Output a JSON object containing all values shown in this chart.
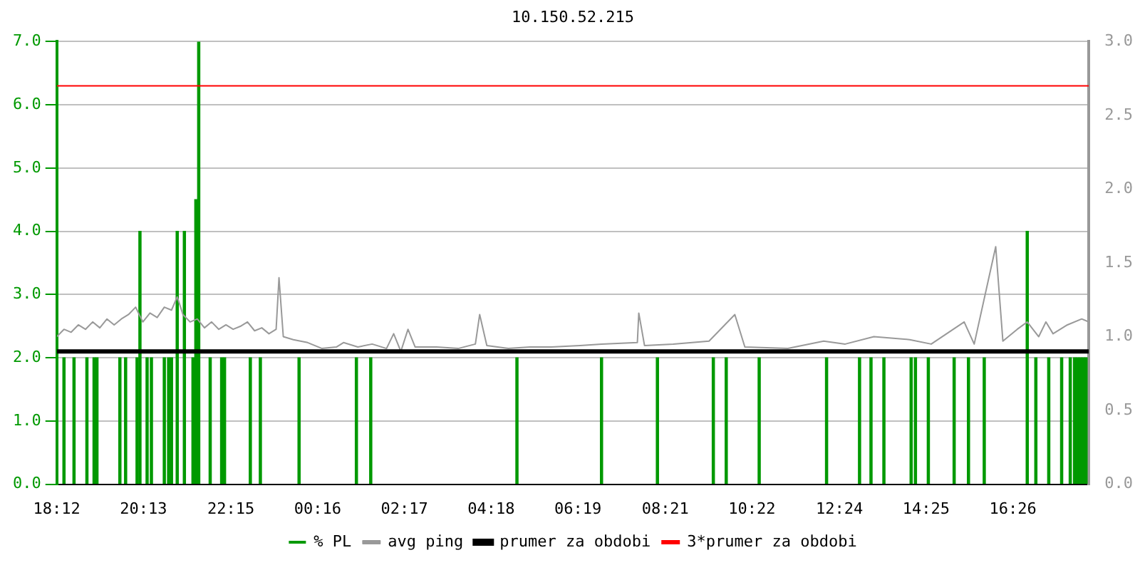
{
  "chart_data": {
    "type": "bar",
    "title": "10.150.52.215",
    "xlim": [
      "--01-01T18:12",
      "--01-02T18:12"
    ],
    "xticks": [
      {
        "value": "--01-01T18:12",
        "label": "18:12"
      },
      {
        "value": "--01-01T20:13",
        "label": "20:13"
      },
      {
        "value": "--01-01T22:15",
        "label": "22:15"
      },
      {
        "value": "--01-02T00:16",
        "label": "00:16"
      },
      {
        "value": "--01-02T02:17",
        "label": "02:17"
      },
      {
        "value": "--01-02T04:18",
        "label": "04:18"
      },
      {
        "value": "--01-02T06:19",
        "label": "06:19"
      },
      {
        "value": "--01-02T08:21",
        "label": "08:21"
      },
      {
        "value": "--01-02T10:22",
        "label": "10:22"
      },
      {
        "value": "--01-02T12:24",
        "label": "12:24"
      },
      {
        "value": "--01-02T14:25",
        "label": "14:25"
      },
      {
        "value": "--01-02T16:26",
        "label": "16:26"
      }
    ],
    "ylim": [
      0,
      7
    ],
    "yticks": [
      {
        "value": 0,
        "label": "0.0"
      },
      {
        "value": 1,
        "label": "1.0"
      },
      {
        "value": 2,
        "label": "2.0"
      },
      {
        "value": 3,
        "label": "3.0"
      },
      {
        "value": 4,
        "label": "4.0"
      },
      {
        "value": 5,
        "label": "5.0"
      },
      {
        "value": 6,
        "label": "6.0"
      },
      {
        "value": 7,
        "label": "7.0"
      }
    ],
    "y2lim": [
      0,
      3
    ],
    "y2ticks": [
      {
        "value": 0,
        "label": "0.0"
      },
      {
        "value": 0.5,
        "label": "0.5"
      },
      {
        "value": 1,
        "label": "1.0"
      },
      {
        "value": 1.5,
        "label": "1.5"
      },
      {
        "value": 2,
        "label": "2.0"
      },
      {
        "value": 2.5,
        "label": "2.5"
      },
      {
        "value": 3,
        "label": "3.0"
      }
    ],
    "grid": "y",
    "legend": "bottom",
    "series": [
      {
        "name": "% PL",
        "color": "#009900",
        "x": [
          "--01-01T18:22",
          "--01-01T18:36",
          "--01-01T18:54",
          "--01-01T19:04",
          "--01-01T19:08",
          "--01-01T19:40",
          "--01-01T19:48",
          "--01-01T20:04",
          "--01-01T20:08",
          "--01-01T20:18",
          "--01-01T20:24",
          "--01-01T20:42",
          "--01-01T20:48",
          "--01-01T20:52",
          "--01-01T21:00",
          "--01-01T21:10",
          "--01-01T21:22",
          "--01-01T21:26",
          "--01-01T21:30",
          "--01-01T21:46",
          "--01-01T22:02",
          "--01-01T22:06",
          "--01-01T22:42",
          "--01-01T22:56",
          "--01-01T23:50",
          "--01-02T01:10",
          "--01-02T01:30",
          "--01-02T04:54",
          "--01-02T06:52",
          "--01-02T08:10",
          "--01-02T09:28",
          "--01-02T09:46",
          "--01-02T10:32",
          "--01-02T12:06",
          "--01-02T12:52",
          "--01-02T13:08",
          "--01-02T13:26",
          "--01-02T14:04",
          "--01-02T14:10",
          "--01-02T14:28",
          "--01-02T15:04",
          "--01-02T15:24",
          "--01-02T15:46",
          "--01-02T16:46",
          "--01-02T16:58",
          "--01-02T17:16",
          "--01-02T17:34",
          "--01-02T17:46",
          "--01-02T17:52",
          "--01-02T17:56",
          "--01-02T18:00",
          "--01-02T18:04",
          "--01-02T18:08"
        ],
        "values": [
          2,
          2,
          2,
          2,
          2,
          2,
          2,
          2,
          4,
          2,
          2,
          2,
          2,
          2,
          4,
          4,
          2,
          4.5,
          7,
          2,
          2,
          2,
          2,
          2,
          2,
          2,
          2,
          2,
          2,
          2,
          2,
          2,
          2,
          2,
          2,
          2,
          2,
          2,
          2,
          2,
          2,
          2,
          2,
          4,
          2,
          2,
          2,
          2,
          2,
          2,
          2,
          2,
          2
        ]
      },
      {
        "name": "avg ping",
        "type": "line",
        "axis": "y2",
        "color": "#999999",
        "x": [
          "--01-01T18:12",
          "--01-01T18:22",
          "--01-01T18:32",
          "--01-01T18:42",
          "--01-01T18:52",
          "--01-01T19:02",
          "--01-01T19:12",
          "--01-01T19:22",
          "--01-01T19:32",
          "--01-01T19:42",
          "--01-01T19:52",
          "--01-01T20:02",
          "--01-01T20:12",
          "--01-01T20:22",
          "--01-01T20:32",
          "--01-01T20:42",
          "--01-01T20:52",
          "--01-01T21:00",
          "--01-01T21:08",
          "--01-01T21:18",
          "--01-01T21:28",
          "--01-01T21:38",
          "--01-01T21:48",
          "--01-01T21:58",
          "--01-01T22:08",
          "--01-01T22:18",
          "--01-01T22:28",
          "--01-01T22:38",
          "--01-01T22:48",
          "--01-01T22:58",
          "--01-01T23:08",
          "--01-01T23:18",
          "--01-01T23:22",
          "--01-01T23:28",
          "--01-01T23:42",
          "--01-02T00:02",
          "--01-02T00:22",
          "--01-02T00:42",
          "--01-02T00:52",
          "--01-02T01:12",
          "--01-02T01:32",
          "--01-02T01:52",
          "--01-02T02:02",
          "--01-02T02:12",
          "--01-02T02:22",
          "--01-02T02:32",
          "--01-02T03:02",
          "--01-02T03:32",
          "--01-02T03:56",
          "--01-02T04:02",
          "--01-02T04:12",
          "--01-02T04:42",
          "--01-02T05:12",
          "--01-02T05:42",
          "--01-02T06:22",
          "--01-02T06:52",
          "--01-02T07:42",
          "--01-02T07:44",
          "--01-02T07:52",
          "--01-02T08:32",
          "--01-02T09:22",
          "--01-02T09:58",
          "--01-02T10:12",
          "--01-02T11:12",
          "--01-02T12:02",
          "--01-02T12:32",
          "--01-02T13:12",
          "--01-02T14:02",
          "--01-02T14:32",
          "--01-02T15:18",
          "--01-02T15:32",
          "--01-02T16:02",
          "--01-02T16:12",
          "--01-02T16:32",
          "--01-02T16:46",
          "--01-02T17:02",
          "--01-02T17:12",
          "--01-02T17:22",
          "--01-02T17:42",
          "--01-02T18:02",
          "--01-02T18:12"
        ],
        "values": [
          1.0,
          1.05,
          1.03,
          1.08,
          1.05,
          1.1,
          1.06,
          1.12,
          1.08,
          1.12,
          1.15,
          1.2,
          1.1,
          1.16,
          1.13,
          1.2,
          1.18,
          1.27,
          1.15,
          1.1,
          1.12,
          1.06,
          1.1,
          1.05,
          1.08,
          1.05,
          1.07,
          1.1,
          1.04,
          1.06,
          1.02,
          1.05,
          1.4,
          1.0,
          0.98,
          0.96,
          0.92,
          0.93,
          0.96,
          0.93,
          0.95,
          0.92,
          1.02,
          0.9,
          1.05,
          0.93,
          0.93,
          0.92,
          0.95,
          1.15,
          0.94,
          0.92,
          0.93,
          0.93,
          0.94,
          0.95,
          0.96,
          1.16,
          0.94,
          0.95,
          0.97,
          1.15,
          0.93,
          0.92,
          0.97,
          0.95,
          1.0,
          0.98,
          0.95,
          1.1,
          0.95,
          1.61,
          0.97,
          1.05,
          1.1,
          1.0,
          1.1,
          1.02,
          1.08,
          1.12,
          1.1
        ]
      }
    ],
    "ref_lines": [
      {
        "axis": "y2",
        "value": 0.9,
        "label": "prumer za obdobi",
        "color": "#000000"
      },
      {
        "axis": "y2",
        "value": 2.7,
        "label": "3*prumer za obdobi",
        "color": "#ff0000"
      }
    ]
  }
}
